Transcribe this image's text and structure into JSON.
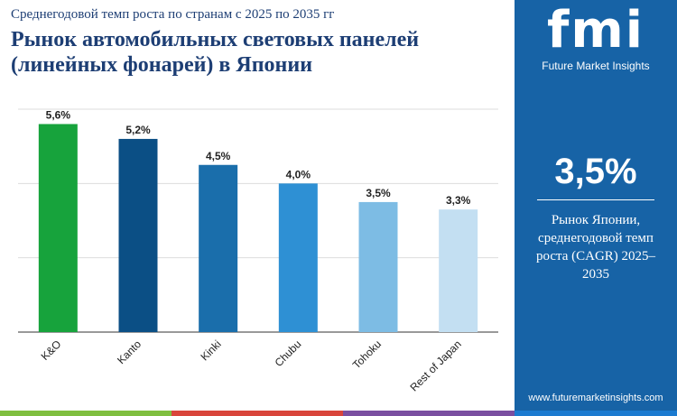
{
  "chart_data": {
    "type": "bar",
    "subtitle": "Среднегодовой темп роста по странам с 2025 по 2035 гг",
    "title": "Рынок автомобильных световых панелей (линейных фонарей) в Японии",
    "categories": [
      "K&O",
      "Kanto",
      "Kinki",
      "Chubu",
      "Tohoku",
      "Rest of Japan"
    ],
    "values": [
      5.6,
      5.2,
      4.5,
      4.0,
      3.5,
      3.3
    ],
    "value_labels": [
      "5,6%",
      "5,2%",
      "4,5%",
      "4,0%",
      "3,5%",
      "3,3%"
    ],
    "colors": [
      "#17a33c",
      "#0b4f85",
      "#1a6eab",
      "#2e90d4",
      "#7dbce4",
      "#c3dff2"
    ],
    "ylim": [
      0,
      6
    ],
    "yticks": [
      0,
      2,
      4,
      6
    ],
    "grid": true
  },
  "sidebar": {
    "logo": "fmi",
    "brand": "Future Market Insights",
    "headline": "3,5%",
    "caption": "Рынок Японии, среднегодовой темп роста (CAGR) 2025–2035",
    "url": "www.futuremarketinsights.com"
  }
}
